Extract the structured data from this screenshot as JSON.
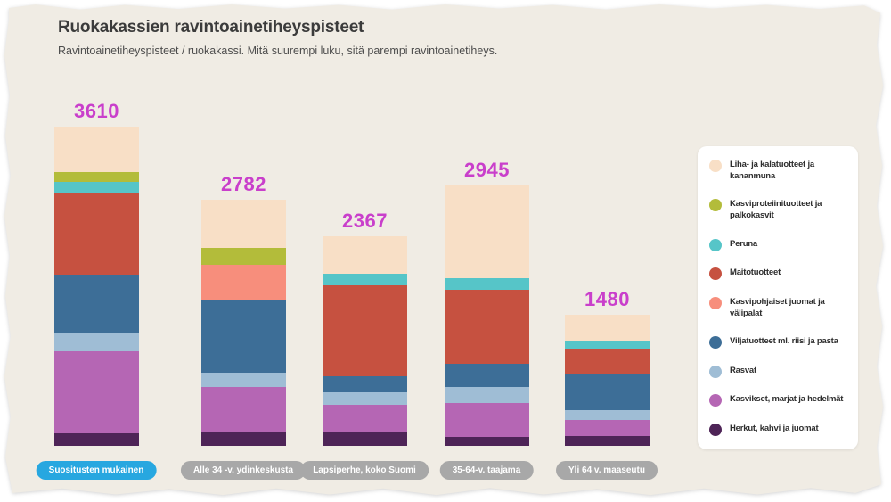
{
  "colors": {
    "page_background": "#ffffff",
    "paper_background": "#f0ece4",
    "value_label": "#c93fcb",
    "active_pill": "#27a7e0",
    "inactive_pill": "#a8a8a8",
    "pill_text": "#ffffff",
    "legend_card_background": "#ffffff",
    "title_text": "#3b3b3b",
    "subtitle_text": "#4d4d4d",
    "legend_text": "#2e2e2e"
  },
  "chart_data": {
    "type": "bar",
    "variant": "stacked",
    "title": "Ruokakassien ravintoainetiheyspisteet",
    "subtitle": "Ravintoainetiheyspisteet / ruokakassi. Mitä suurempi luku, sitä parempi ravintoainetiheys.",
    "legend_position": "right",
    "grid": false,
    "ylim": [
      0,
      3800
    ],
    "categories": [
      "Suositusten mukainen",
      "Alle 34 -v. ydinkeskusta",
      "Lapsiperhe, koko Suomi",
      "35-64-v. taajama",
      "Yli 64 v. maaseutu"
    ],
    "selected_category": "Suositusten mukainen",
    "totals": [
      3610,
      2782,
      2367,
      2945,
      1480
    ],
    "series": [
      {
        "name": "Liha- ja kalatuotteet ja kananmuna",
        "color": "#f8dfc6",
        "values": [
          510,
          548,
          419,
          1053,
          295
        ]
      },
      {
        "name": "Kasviproteiinituotteet ja palkokasvit",
        "color": "#b3bc3a",
        "values": [
          118,
          188,
          0,
          0,
          0
        ]
      },
      {
        "name": "Peruna",
        "color": "#56c5c8",
        "values": [
          131,
          0,
          134,
          131,
          85
        ]
      },
      {
        "name": "Maitotuotteet",
        "color": "#c65140",
        "values": [
          910,
          0,
          1028,
          831,
          298
        ]
      },
      {
        "name": "Kasvipohjaiset juomat ja välipalat",
        "color": "#f78e7c",
        "values": [
          0,
          391,
          0,
          0,
          0
        ]
      },
      {
        "name": "Viljatuotteet ml. riisi ja pasta",
        "color": "#3d6e97",
        "values": [
          667,
          826,
          184,
          263,
          396
        ]
      },
      {
        "name": "Rasvat",
        "color": "#9fbdd5",
        "values": [
          209,
          161,
          141,
          178,
          119
        ]
      },
      {
        "name": "Kasvikset, marjat ja hedelmät",
        "color": "#b566b4",
        "values": [
          920,
          514,
          311,
          387,
          179
        ]
      },
      {
        "name": "Herkut, kahvi ja juomat",
        "color": "#4e2457",
        "values": [
          145,
          154,
          150,
          102,
          108
        ]
      }
    ]
  }
}
